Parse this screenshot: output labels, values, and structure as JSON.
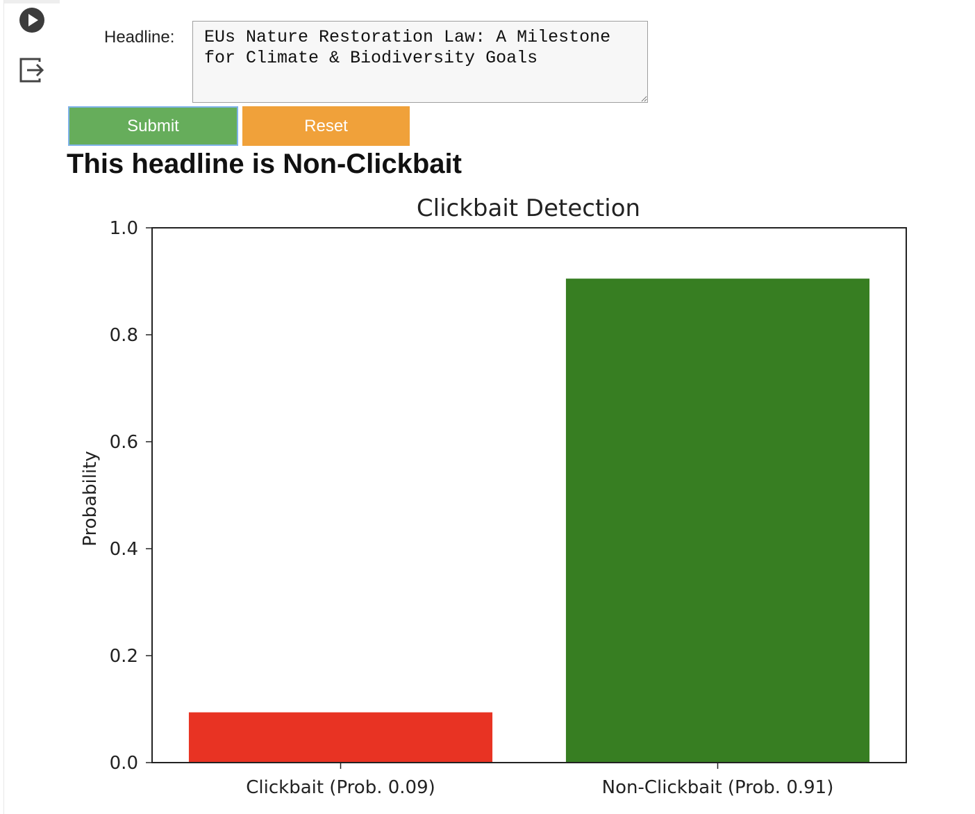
{
  "form": {
    "headline_label": "Headline:",
    "headline_value": "EUs Nature Restoration Law: A Milestone for Climate & Biodiversity Goals",
    "submit_label": "Submit",
    "reset_label": "Reset"
  },
  "result": {
    "text": "This headline is Non-Clickbait"
  },
  "colors": {
    "submit": "#66ad5b",
    "reset": "#f0a13a",
    "clickbait_bar": "#e83323",
    "nonclickbait_bar": "#377e22"
  },
  "chart_data": {
    "type": "bar",
    "title": "Clickbait Detection",
    "xlabel": "",
    "ylabel": "Probability",
    "categories": [
      "Clickbait (Prob. 0.09)",
      "Non-Clickbait (Prob. 0.91)"
    ],
    "values": [
      0.094,
      0.905
    ],
    "bar_colors": [
      "#e83323",
      "#377e22"
    ],
    "ylim": [
      0.0,
      1.0
    ],
    "yticks": [
      "0.0",
      "0.2",
      "0.4",
      "0.6",
      "0.8",
      "1.0"
    ],
    "grid": false,
    "legend": "none"
  }
}
